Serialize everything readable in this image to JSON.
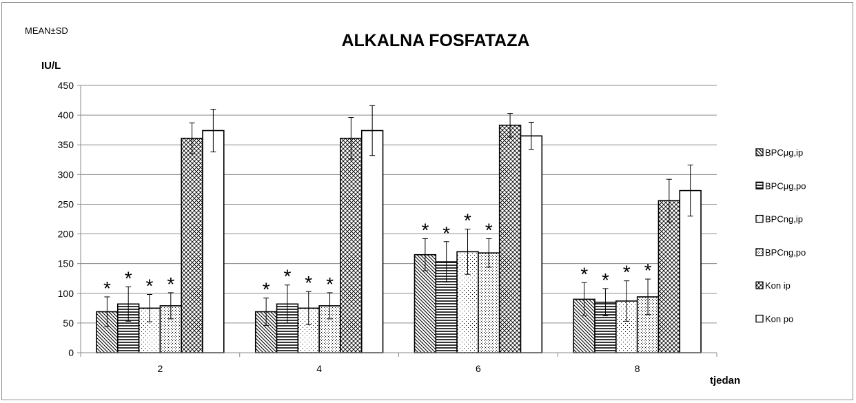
{
  "chart_data": {
    "type": "bar",
    "title": "ALKALNA FOSFATAZA",
    "corner_note": "MEAN±SD",
    "ylabel": "IU/L",
    "xlabel": "tjedan",
    "categories": [
      "2",
      "4",
      "6",
      "8"
    ],
    "ylim": [
      0,
      450
    ],
    "yticks": [
      0,
      50,
      100,
      150,
      200,
      250,
      300,
      350,
      400,
      450
    ],
    "grid": true,
    "legend_position": "right",
    "significance_marker": "*",
    "series": [
      {
        "name": "BPCμg,ip",
        "pattern": "diagonal",
        "values": [
          69,
          69,
          165,
          90
        ],
        "sd": [
          25,
          23,
          27,
          28
        ],
        "significant": [
          true,
          true,
          true,
          true
        ]
      },
      {
        "name": "BPCμg,po",
        "pattern": "horizontal",
        "values": [
          82,
          82,
          153,
          85
        ],
        "sd": [
          29,
          32,
          34,
          23
        ],
        "significant": [
          true,
          true,
          true,
          true
        ]
      },
      {
        "name": "BPCng,ip",
        "pattern": "dots",
        "values": [
          75,
          75,
          170,
          87
        ],
        "sd": [
          23,
          28,
          38,
          34
        ],
        "significant": [
          true,
          true,
          true,
          true
        ]
      },
      {
        "name": "BPCng,po",
        "pattern": "fine-dots",
        "values": [
          79,
          79,
          168,
          94
        ],
        "sd": [
          22,
          22,
          24,
          30
        ],
        "significant": [
          true,
          true,
          true,
          true
        ]
      },
      {
        "name": "Kon ip",
        "pattern": "crosshatch",
        "values": [
          361,
          361,
          383,
          256
        ],
        "sd": [
          26,
          35,
          20,
          36
        ],
        "significant": [
          false,
          false,
          false,
          false
        ]
      },
      {
        "name": "Kon po",
        "pattern": "none",
        "values": [
          374,
          374,
          365,
          273
        ],
        "sd": [
          36,
          42,
          23,
          43
        ],
        "significant": [
          false,
          false,
          false,
          false
        ]
      }
    ]
  }
}
